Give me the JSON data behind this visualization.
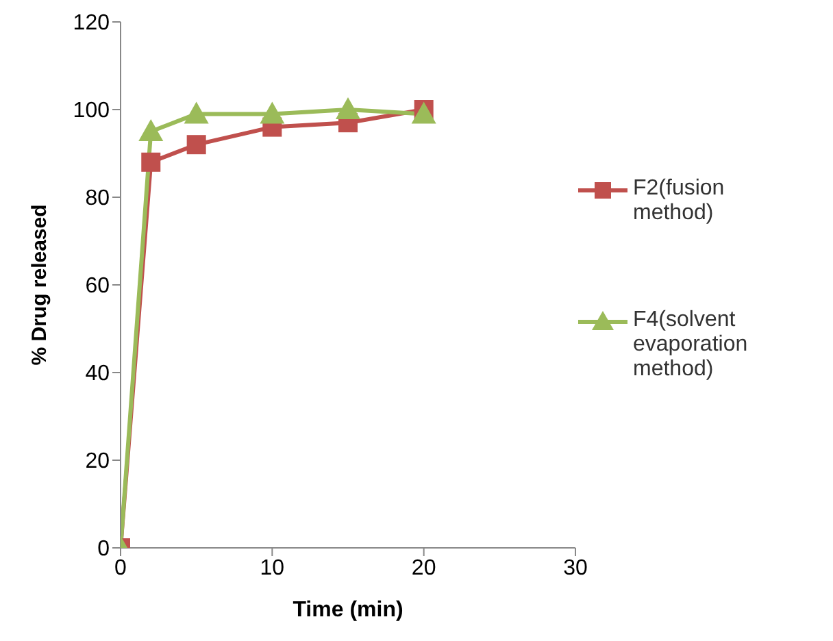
{
  "chart_data": {
    "type": "line",
    "xlabel": "Time (min)",
    "ylabel": "% Drug released",
    "x": [
      0,
      2,
      5,
      10,
      15,
      20
    ],
    "series": [
      {
        "name": "F2(fusion method)",
        "color": "#c0504d",
        "marker": "square",
        "values": [
          0,
          88,
          92,
          96,
          97,
          100
        ]
      },
      {
        "name": "F4(solvent evaporation method)",
        "color": "#9bbb59",
        "marker": "triangle",
        "values": [
          0,
          95,
          99,
          99,
          100,
          99
        ]
      }
    ],
    "xlim": [
      0,
      30
    ],
    "xticks": [
      0,
      10,
      20,
      30
    ],
    "ylim": [
      0,
      120
    ],
    "yticks": [
      0,
      20,
      40,
      60,
      80,
      100,
      120
    ],
    "grid": false,
    "legend": "right"
  }
}
